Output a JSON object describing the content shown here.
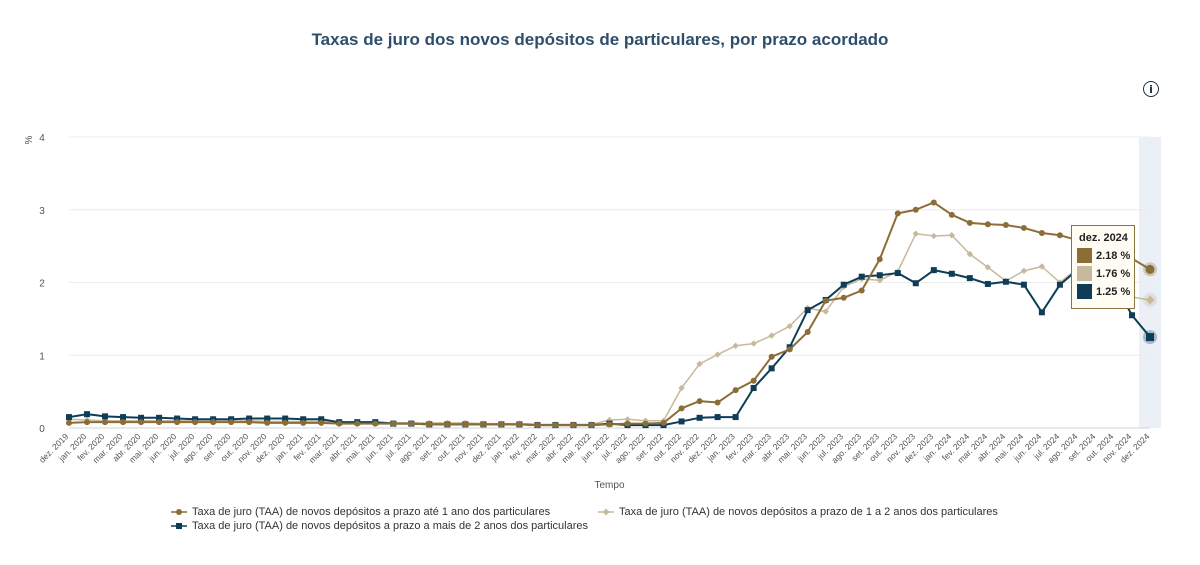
{
  "title": "Taxas de juro dos novos depósitos de particulares, por prazo acordado",
  "info_icon": "info-icon",
  "tooltip": {
    "header": "dez. 2024",
    "rows": [
      {
        "value": "2.18 %",
        "color": "#8c6d36"
      },
      {
        "value": "1.76 %",
        "color": "#c7b99b"
      },
      {
        "value": "1.25 %",
        "color": "#0e3d57"
      }
    ]
  },
  "chart_data": {
    "type": "line",
    "title": "Taxas de juro dos novos depósitos de particulares, por prazo acordado",
    "ylabel": "%",
    "xlabel": "Tempo",
    "ylim": [
      0,
      4
    ],
    "yticks": [
      0,
      1,
      2,
      3,
      4
    ],
    "grid": true,
    "legend_position": "bottom",
    "categories": [
      "dez. 2019",
      "jan. 2020",
      "fev. 2020",
      "mar. 2020",
      "abr. 2020",
      "mai. 2020",
      "jun. 2020",
      "jul. 2020",
      "ago. 2020",
      "set. 2020",
      "out. 2020",
      "nov. 2020",
      "dez. 2020",
      "jan. 2021",
      "fev. 2021",
      "mar. 2021",
      "abr. 2021",
      "mai. 2021",
      "jun. 2021",
      "jul. 2021",
      "ago. 2021",
      "set. 2021",
      "out. 2021",
      "nov. 2021",
      "dez. 2021",
      "jan. 2022",
      "fev. 2022",
      "mar. 2022",
      "abr. 2022",
      "mai. 2022",
      "jun. 2022",
      "jul. 2022",
      "ago. 2022",
      "set. 2022",
      "out. 2022",
      "nov. 2022",
      "dez. 2022",
      "jan. 2023",
      "fev. 2023",
      "mar. 2023",
      "abr. 2023",
      "mai. 2023",
      "jun. 2023",
      "jul. 2023",
      "ago. 2023",
      "set. 2023",
      "out. 2023",
      "nov. 2023",
      "dez. 2023",
      "jan. 2024",
      "fev. 2024",
      "mar. 2024",
      "abr. 2024",
      "mai. 2024",
      "jun. 2024",
      "jul. 2024",
      "ago. 2024",
      "set. 2024",
      "out. 2024",
      "nov. 2024",
      "dez. 2024"
    ],
    "highlight_category": "dez. 2024",
    "series": [
      {
        "name": "Taxa de juro (TAA) de novos depósitos a prazo até 1 ano dos particulares",
        "color": "#8c6d36",
        "marker": "circle",
        "values": [
          0.07,
          0.08,
          0.08,
          0.08,
          0.08,
          0.08,
          0.08,
          0.08,
          0.08,
          0.08,
          0.08,
          0.07,
          0.07,
          0.07,
          0.07,
          0.06,
          0.06,
          0.06,
          0.06,
          0.06,
          0.05,
          0.05,
          0.05,
          0.05,
          0.05,
          0.05,
          0.04,
          0.04,
          0.04,
          0.04,
          0.05,
          0.06,
          0.06,
          0.07,
          0.27,
          0.37,
          0.35,
          0.52,
          0.65,
          0.98,
          1.08,
          1.32,
          1.75,
          1.79,
          1.89,
          2.32,
          2.95,
          3.0,
          3.1,
          2.93,
          2.82,
          2.8,
          2.79,
          2.75,
          2.68,
          2.65,
          2.58,
          2.51,
          2.44,
          2.33,
          2.18
        ]
      },
      {
        "name": "Taxa de juro (TAA) de novos depósitos a prazo de 1 a 2 anos dos particulares",
        "color": "#c7b99b",
        "marker": "diamond",
        "values": [
          0.12,
          0.11,
          0.1,
          0.1,
          0.1,
          0.1,
          0.1,
          0.1,
          0.1,
          0.1,
          0.1,
          0.09,
          0.09,
          0.09,
          0.09,
          0.08,
          0.08,
          0.08,
          0.07,
          0.07,
          0.07,
          0.07,
          0.07,
          0.06,
          0.06,
          0.06,
          0.05,
          0.05,
          0.05,
          0.05,
          0.11,
          0.12,
          0.1,
          0.1,
          0.55,
          0.88,
          1.01,
          1.13,
          1.16,
          1.27,
          1.4,
          1.65,
          1.6,
          1.94,
          2.05,
          2.03,
          2.15,
          2.67,
          2.64,
          2.65,
          2.39,
          2.21,
          2.02,
          2.16,
          2.22,
          2.0,
          2.2,
          2.16,
          1.95,
          1.8,
          1.76
        ]
      },
      {
        "name": "Taxa de juro (TAA) de novos depósitos a prazo a mais de 2 anos dos particulares",
        "color": "#0e3d57",
        "marker": "square",
        "values": [
          0.15,
          0.19,
          0.16,
          0.15,
          0.14,
          0.14,
          0.13,
          0.12,
          0.12,
          0.12,
          0.13,
          0.13,
          0.13,
          0.12,
          0.12,
          0.08,
          0.08,
          0.08,
          0.06,
          0.06,
          0.05,
          0.05,
          0.05,
          0.05,
          0.05,
          0.05,
          0.04,
          0.04,
          0.04,
          0.04,
          0.06,
          0.04,
          0.04,
          0.04,
          0.09,
          0.14,
          0.15,
          0.15,
          0.55,
          0.82,
          1.11,
          1.62,
          1.76,
          1.97,
          2.08,
          2.1,
          2.13,
          1.99,
          2.17,
          2.12,
          2.06,
          1.98,
          2.01,
          1.97,
          1.59,
          1.97,
          2.18,
          2.2,
          2.0,
          1.55,
          1.25
        ]
      }
    ]
  }
}
